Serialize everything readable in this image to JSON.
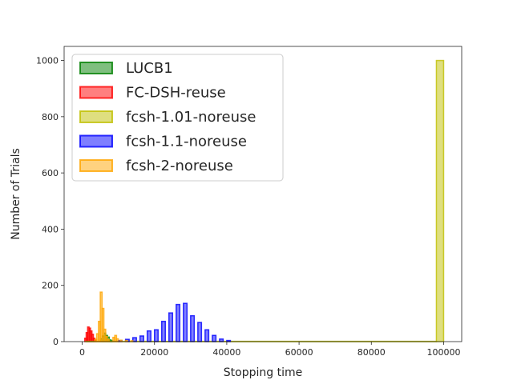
{
  "chart_data": {
    "type": "histogram",
    "xlabel": "Stopping time",
    "ylabel": "Number of Trials",
    "xlim": [
      -5000,
      105000
    ],
    "ylim": [
      0,
      1050
    ],
    "xticks": [
      0,
      20000,
      40000,
      60000,
      80000,
      100000
    ],
    "yticks": [
      0,
      200,
      400,
      600,
      800,
      1000
    ],
    "legend_position": "upper-left",
    "series": [
      {
        "name": "LUCB1",
        "color": "#008000",
        "bins": [
          [
            5000,
            5500,
            10
          ],
          [
            5500,
            6000,
            20
          ],
          [
            6000,
            6500,
            30
          ],
          [
            6500,
            7000,
            22
          ],
          [
            7000,
            7500,
            16
          ],
          [
            7500,
            8000,
            6
          ],
          [
            8000,
            8500,
            3
          ]
        ]
      },
      {
        "name": "FC-DSH-reuse",
        "color": "#ff0000",
        "bins": [
          [
            700,
            1100,
            12
          ],
          [
            1100,
            1500,
            32
          ],
          [
            1500,
            1900,
            52
          ],
          [
            1900,
            2300,
            48
          ],
          [
            2300,
            2700,
            38
          ],
          [
            2700,
            3100,
            26
          ],
          [
            3100,
            3500,
            12
          ],
          [
            3500,
            3900,
            5
          ]
        ]
      },
      {
        "name": "fcsh-1.01-noreuse",
        "color": "#bfbf00",
        "bins": [
          [
            1000,
            98000,
            1
          ],
          [
            98000,
            100000,
            1000
          ]
        ]
      },
      {
        "name": "fcsh-1.1-noreuse",
        "color": "#0000ff",
        "bins": [
          [
            10000,
            11000,
            4
          ],
          [
            12000,
            13000,
            8
          ],
          [
            14000,
            15000,
            14
          ],
          [
            16000,
            17000,
            20
          ],
          [
            18000,
            19000,
            38
          ],
          [
            20000,
            21000,
            42
          ],
          [
            22000,
            23000,
            72
          ],
          [
            24000,
            25000,
            102
          ],
          [
            26000,
            27000,
            132
          ],
          [
            28000,
            29000,
            136
          ],
          [
            30000,
            31000,
            92
          ],
          [
            32000,
            33000,
            68
          ],
          [
            34000,
            35000,
            42
          ],
          [
            36000,
            37000,
            22
          ],
          [
            38000,
            39000,
            9
          ],
          [
            40000,
            41000,
            4
          ]
        ]
      },
      {
        "name": "fcsh-2-noreuse",
        "color": "#ffa500",
        "bins": [
          [
            3500,
            4000,
            8
          ],
          [
            4000,
            4500,
            28
          ],
          [
            4500,
            5000,
            72
          ],
          [
            5000,
            5500,
            176
          ],
          [
            5500,
            6000,
            118
          ],
          [
            6000,
            6500,
            44
          ],
          [
            6500,
            7000,
            18
          ],
          [
            7000,
            7500,
            8
          ],
          [
            8500,
            9000,
            15
          ],
          [
            9000,
            9500,
            22
          ],
          [
            9500,
            10000,
            10
          ],
          [
            10500,
            11000,
            5
          ],
          [
            12000,
            12500,
            4
          ],
          [
            13500,
            14000,
            3
          ]
        ]
      }
    ]
  }
}
